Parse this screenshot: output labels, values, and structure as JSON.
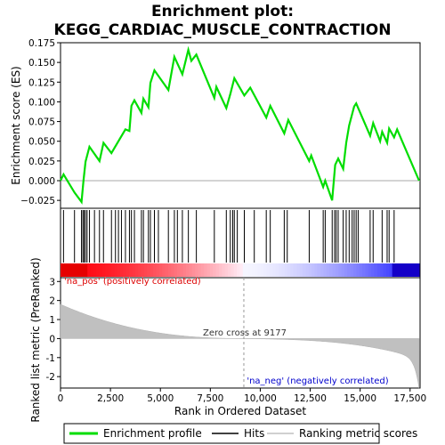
{
  "chart_data": {
    "type": "line",
    "title_line1": "Enrichment plot:",
    "title_line2": "KEGG_CARDIAC_MUSCLE_CONTRACTION",
    "xlabel": "Rank in Ordered Dataset",
    "ylabel_top": "Enrichment score (ES)",
    "ylabel_bottom": "Ranked list metric (PreRanked)",
    "xlim": [
      0,
      18000
    ],
    "x_ticks": [
      0,
      2500,
      5000,
      7500,
      10000,
      12500,
      15000,
      17500
    ],
    "x_tick_labels": [
      "0",
      "2,500",
      "5,000",
      "7,500",
      "10,000",
      "12,500",
      "15,000",
      "17,500"
    ],
    "es_ylim": [
      -0.035,
      0.175
    ],
    "es_ticks": [
      -0.025,
      0.0,
      0.025,
      0.05,
      0.075,
      0.1,
      0.125,
      0.15,
      0.175
    ],
    "es_tick_labels": [
      "−0.025",
      "0.000",
      "0.025",
      "0.050",
      "0.075",
      "0.100",
      "0.125",
      "0.150",
      "0.175"
    ],
    "metric_ylim": [
      -2.6,
      3.2
    ],
    "metric_ticks": [
      -2,
      -1,
      0,
      1,
      2,
      3
    ],
    "metric_tick_labels": [
      "-2",
      "-1",
      "0",
      "1",
      "2",
      "3"
    ],
    "zero_cross_rank": 9177,
    "zero_cross_label": "Zero cross at 9177",
    "pos_label": "'na_pos' (positively correlated)",
    "neg_label": "'na_neg' (negatively correlated)",
    "es_curve": [
      [
        0,
        0.0
      ],
      [
        150,
        0.008
      ],
      [
        700,
        -0.015
      ],
      [
        1050,
        -0.027
      ],
      [
        1150,
        0.0
      ],
      [
        1250,
        0.024
      ],
      [
        1450,
        0.043
      ],
      [
        1950,
        0.025
      ],
      [
        2150,
        0.048
      ],
      [
        2550,
        0.035
      ],
      [
        3250,
        0.065
      ],
      [
        3450,
        0.063
      ],
      [
        3550,
        0.095
      ],
      [
        3700,
        0.102
      ],
      [
        4050,
        0.086
      ],
      [
        4150,
        0.104
      ],
      [
        4400,
        0.093
      ],
      [
        4500,
        0.124
      ],
      [
        4700,
        0.14
      ],
      [
        5400,
        0.115
      ],
      [
        5700,
        0.157
      ],
      [
        6100,
        0.135
      ],
      [
        6400,
        0.166
      ],
      [
        6550,
        0.152
      ],
      [
        6800,
        0.16
      ],
      [
        7700,
        0.105
      ],
      [
        7800,
        0.119
      ],
      [
        8300,
        0.092
      ],
      [
        8500,
        0.11
      ],
      [
        8700,
        0.13
      ],
      [
        9200,
        0.108
      ],
      [
        9500,
        0.118
      ],
      [
        10300,
        0.08
      ],
      [
        10500,
        0.095
      ],
      [
        11200,
        0.06
      ],
      [
        11400,
        0.077
      ],
      [
        12450,
        0.025
      ],
      [
        12550,
        0.032
      ],
      [
        13150,
        -0.008
      ],
      [
        13250,
        0.0
      ],
      [
        13600,
        -0.025
      ],
      [
        13750,
        0.02
      ],
      [
        13900,
        0.028
      ],
      [
        14150,
        0.015
      ],
      [
        14300,
        0.048
      ],
      [
        14450,
        0.07
      ],
      [
        14700,
        0.094
      ],
      [
        14800,
        0.098
      ],
      [
        15500,
        0.057
      ],
      [
        15650,
        0.073
      ],
      [
        16000,
        0.05
      ],
      [
        16100,
        0.062
      ],
      [
        16350,
        0.048
      ],
      [
        16450,
        0.066
      ],
      [
        16700,
        0.055
      ],
      [
        16850,
        0.065
      ],
      [
        17950,
        0.0
      ]
    ],
    "hits": [
      150,
      700,
      1050,
      1120,
      1180,
      1250,
      1330,
      1450,
      1700,
      1950,
      2150,
      2550,
      2750,
      2900,
      3050,
      3250,
      3450,
      3550,
      3700,
      4050,
      4150,
      4400,
      4500,
      4700,
      4900,
      5400,
      5700,
      5850,
      6100,
      6400,
      6800,
      7700,
      8300,
      8500,
      8620,
      8700,
      8850,
      9200,
      9700,
      10300,
      10500,
      11200,
      11350,
      12450,
      13150,
      13250,
      13600,
      13720,
      13800,
      13900,
      14150,
      14300,
      14450,
      14600,
      14700,
      14800,
      14900,
      15500,
      15650,
      16100,
      16350,
      16450,
      16700
    ]
  },
  "legend": {
    "items": [
      {
        "label": "Enrichment profile",
        "color": "#00dd00"
      },
      {
        "label": "Hits",
        "color": "#000000"
      },
      {
        "label": "Ranking metric scores",
        "color": "#c0c0c0"
      }
    ]
  },
  "colors": {
    "es_line": "#00dd00",
    "metric_fill": "#c0c0c0",
    "pos_text": "#dd0000",
    "neg_text": "#0000cc",
    "zero_line": "#999999"
  }
}
